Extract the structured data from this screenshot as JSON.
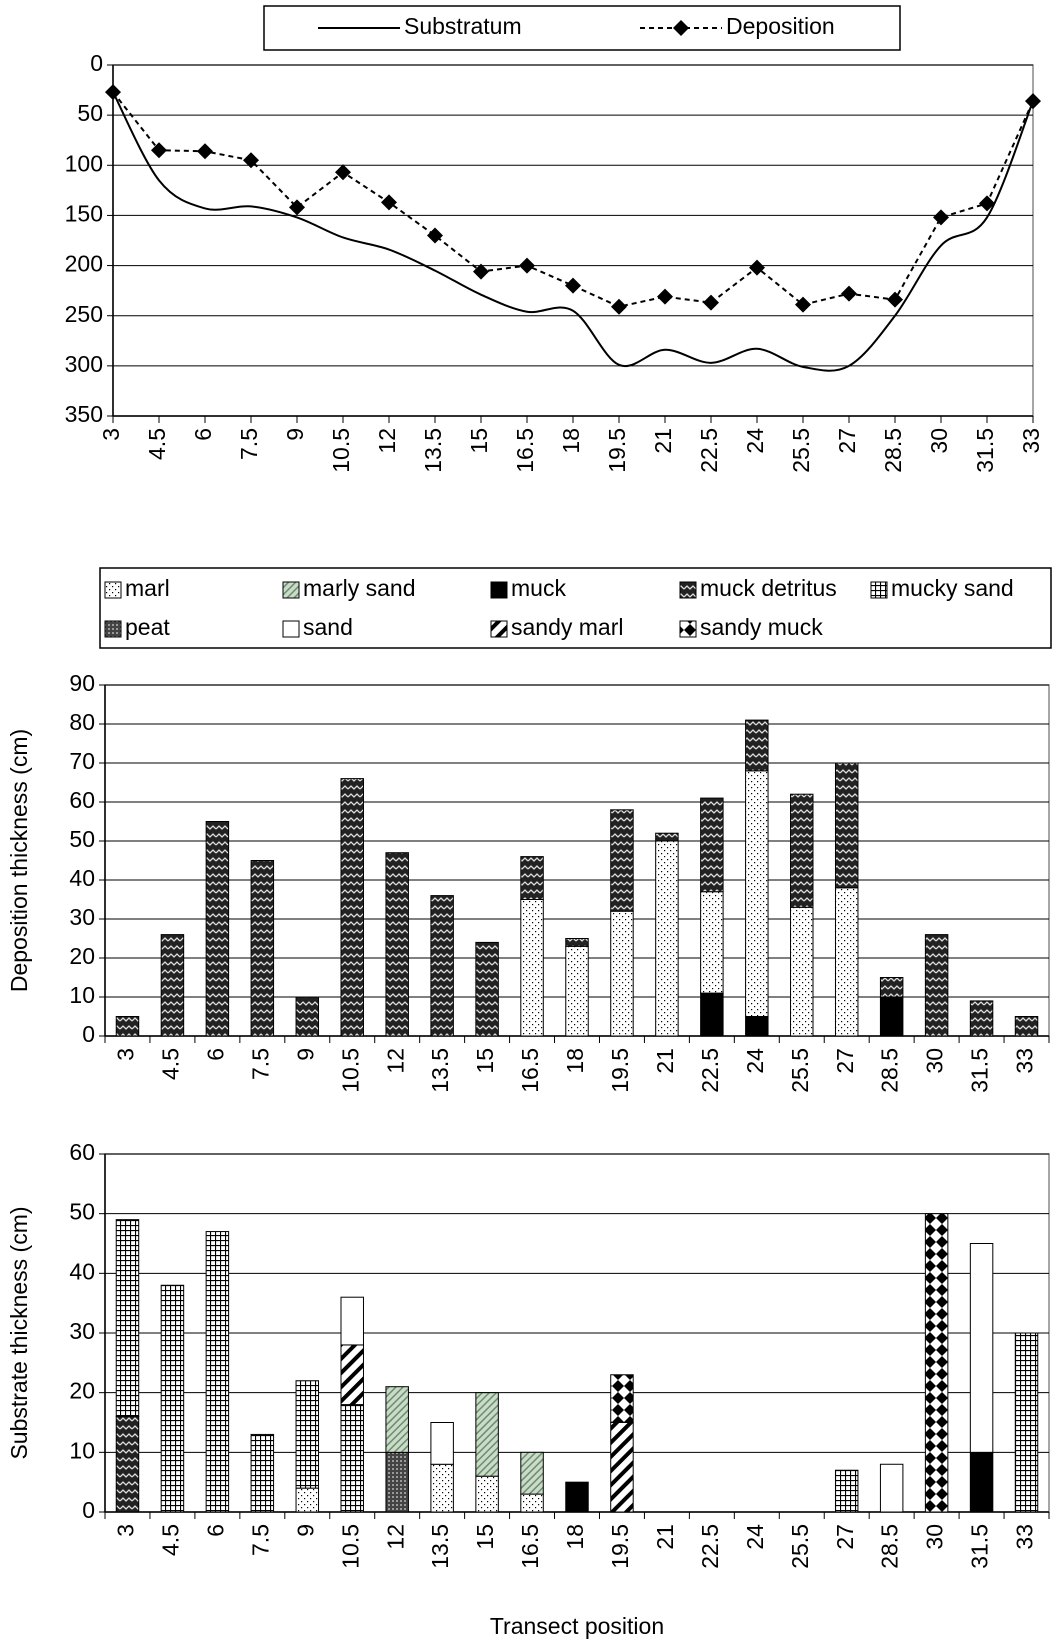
{
  "chart_data": [
    {
      "type": "line",
      "categories": [
        "3",
        "4.5",
        "6",
        "7.5",
        "9",
        "10.5",
        "12",
        "13.5",
        "15",
        "16.5",
        "18",
        "19.5",
        "21",
        "22.5",
        "24",
        "25.5",
        "27",
        "28.5",
        "30",
        "31.5",
        "33"
      ],
      "ylim": [
        0,
        350
      ],
      "yticks": [
        0,
        50,
        100,
        150,
        200,
        250,
        300,
        350
      ],
      "y_inverted": true,
      "grid": true,
      "legend": "top",
      "series": [
        {
          "name": "Substratum",
          "color": "#000000",
          "line_style": "solid",
          "smooth": true,
          "values": [
            27,
            115,
            143,
            141,
            152,
            172,
            184,
            205,
            229,
            246,
            245,
            299,
            284,
            297,
            283,
            301,
            300,
            250,
            180,
            152,
            36
          ]
        },
        {
          "name": "Deposition",
          "color": "#000000",
          "line_style": "dotted",
          "marker": "diamond",
          "values": [
            27,
            85,
            86,
            95,
            142,
            107,
            137,
            170,
            206,
            200,
            220,
            241,
            231,
            237,
            202,
            239,
            228,
            234,
            152,
            138,
            36
          ]
        }
      ]
    },
    {
      "type": "stacked_bar",
      "ylabel": "Deposition thickness (cm)",
      "categories": [
        "3",
        "4.5",
        "6",
        "7.5",
        "9",
        "10.5",
        "12",
        "13.5",
        "15",
        "16.5",
        "18",
        "19.5",
        "21",
        "22.5",
        "24",
        "25.5",
        "27",
        "28.5",
        "30",
        "31.5",
        "33"
      ],
      "ylim": [
        0,
        90
      ],
      "yticks": [
        0,
        10,
        20,
        30,
        40,
        50,
        60,
        70,
        80,
        90
      ],
      "grid": true,
      "series": [
        {
          "name": "muck",
          "color": "#000000",
          "pattern": "solid",
          "values": [
            0,
            0,
            0,
            0,
            0,
            0,
            0,
            0,
            0,
            0,
            0,
            0,
            0,
            11,
            5,
            0,
            0,
            10,
            0,
            0,
            0
          ]
        },
        {
          "name": "marl",
          "color": "#ffffff",
          "pattern": "dots",
          "values": [
            0,
            0,
            0,
            0,
            0,
            0,
            0,
            0,
            0,
            35,
            23,
            32,
            50,
            26,
            63,
            33,
            38,
            0,
            0,
            0,
            0
          ]
        },
        {
          "name": "muck detritus",
          "color": "#333333",
          "pattern": "zigzag",
          "values": [
            5,
            26,
            55,
            45,
            10,
            66,
            47,
            36,
            24,
            11,
            2,
            26,
            2,
            24,
            13,
            29,
            32,
            5,
            26,
            9,
            5
          ]
        }
      ]
    },
    {
      "type": "stacked_bar",
      "ylabel": "Substrate thickness (cm)",
      "xlabel": "Transect position",
      "categories": [
        "3",
        "4.5",
        "6",
        "7.5",
        "9",
        "10.5",
        "12",
        "13.5",
        "15",
        "16.5",
        "18",
        "19.5",
        "21",
        "22.5",
        "24",
        "25.5",
        "27",
        "28.5",
        "30",
        "31.5",
        "33"
      ],
      "ylim": [
        0,
        60
      ],
      "yticks": [
        0,
        10,
        20,
        30,
        40,
        50,
        60
      ],
      "grid": true,
      "legend": "top",
      "series": [
        {
          "color": "#000000",
          "pattern": "solid",
          "values": [
            0,
            0,
            0,
            0,
            0,
            0,
            0,
            0,
            0,
            0,
            5,
            0,
            0,
            0,
            0,
            0,
            0,
            0,
            0,
            10,
            0
          ]
        },
        {
          "name": "peat",
          "color": "#555555",
          "pattern": "peat",
          "values": [
            0,
            0,
            0,
            0,
            0,
            0,
            10,
            0,
            0,
            0,
            0,
            0,
            0,
            0,
            0,
            0,
            0,
            0,
            0,
            0,
            0
          ]
        },
        {
          "color": "#333333",
          "pattern": "zigzag",
          "values": [
            16,
            0,
            0,
            0,
            0,
            0,
            0,
            0,
            0,
            0,
            0,
            0,
            0,
            0,
            0,
            0,
            0,
            0,
            0,
            0,
            0
          ]
        },
        {
          "color": "#ffffff",
          "pattern": "dots",
          "values": [
            0,
            0,
            0,
            0,
            4,
            0,
            0,
            8,
            6,
            3,
            0,
            0,
            0,
            0,
            0,
            0,
            0,
            0,
            0,
            0,
            0
          ]
        },
        {
          "name": "mucky sand",
          "color": "#ffffff",
          "pattern": "grid",
          "values": [
            33,
            38,
            47,
            13,
            18,
            18,
            0,
            0,
            0,
            0,
            0,
            0,
            0,
            0,
            0,
            0,
            7,
            0,
            0,
            0,
            30
          ]
        },
        {
          "name": "sandy marl",
          "color": "#ffffff",
          "pattern": "stripes",
          "values": [
            0,
            0,
            0,
            0,
            0,
            10,
            0,
            0,
            0,
            0,
            0,
            15,
            0,
            0,
            0,
            0,
            0,
            0,
            0,
            0,
            0
          ]
        },
        {
          "name": "marly sand",
          "color": "#c8dcc8",
          "pattern": "hatch",
          "values": [
            0,
            0,
            0,
            0,
            0,
            0,
            11,
            0,
            14,
            7,
            0,
            0,
            0,
            0,
            0,
            0,
            0,
            0,
            0,
            0,
            0
          ]
        },
        {
          "name": "sand",
          "color": "#ffffff",
          "pattern": "solid",
          "values": [
            0,
            0,
            0,
            0,
            0,
            8,
            0,
            7,
            0,
            0,
            0,
            0,
            0,
            0,
            0,
            0,
            0,
            8,
            0,
            35,
            0
          ]
        },
        {
          "name": "sandy muck",
          "color": "#000000",
          "pattern": "diamonds",
          "values": [
            0,
            0,
            0,
            0,
            0,
            0,
            0,
            0,
            0,
            0,
            0,
            8,
            0,
            0,
            0,
            0,
            0,
            0,
            50,
            0,
            0
          ]
        }
      ]
    }
  ]
}
